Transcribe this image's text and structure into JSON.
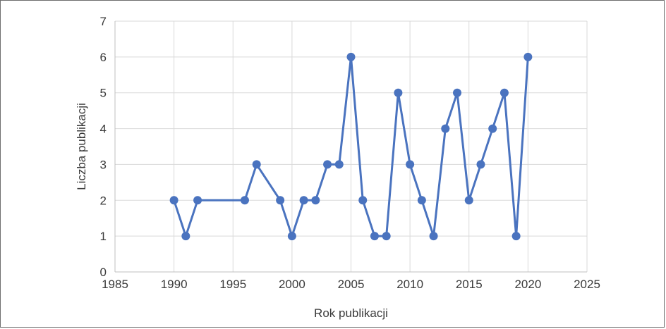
{
  "chart_data": {
    "type": "line",
    "title": "",
    "xlabel": "Rok publikacji",
    "ylabel": "Liczba publikacji",
    "xlim": [
      1985,
      2025
    ],
    "ylim": [
      0,
      7
    ],
    "xticks": [
      1985,
      1990,
      1995,
      2000,
      2005,
      2010,
      2015,
      2020,
      2025
    ],
    "yticks": [
      0,
      1,
      2,
      3,
      4,
      5,
      6,
      7
    ],
    "grid": true,
    "legend": "none",
    "series": [
      {
        "color": "#4a73bf",
        "x": [
          1990,
          1991,
          1992,
          1996,
          1997,
          1999,
          2000,
          2001,
          2002,
          2003,
          2004,
          2005,
          2006,
          2007,
          2008,
          2009,
          2010,
          2011,
          2012,
          2013,
          2014,
          2015,
          2016,
          2017,
          2018,
          2019,
          2020
        ],
        "y": [
          2,
          1,
          2,
          2,
          3,
          2,
          1,
          2,
          2,
          3,
          3,
          6,
          2,
          1,
          1,
          5,
          3,
          2,
          1,
          4,
          5,
          2,
          3,
          4,
          5,
          1,
          6
        ]
      }
    ]
  },
  "colors": {
    "line": "#4a73bf",
    "grid": "#d9d9d9",
    "axis": "#bfbfbf",
    "text": "#3a3a3a"
  }
}
